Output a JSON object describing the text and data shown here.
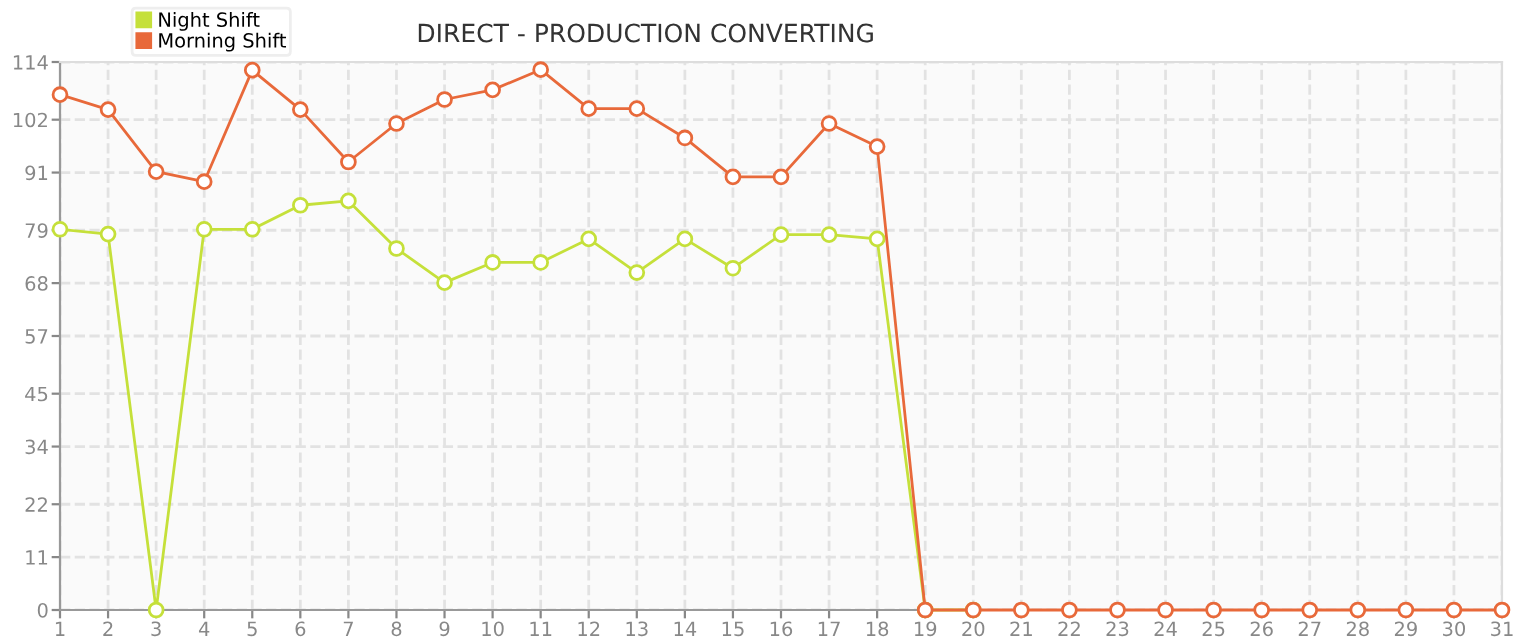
{
  "chart_data": {
    "type": "line",
    "title": "DIRECT - PRODUCTION CONVERTING",
    "x": [
      1,
      2,
      3,
      4,
      5,
      6,
      7,
      8,
      9,
      10,
      11,
      12,
      13,
      14,
      15,
      16,
      17,
      18,
      19,
      20,
      21,
      22,
      23,
      24,
      25,
      26,
      27,
      28,
      29,
      30,
      31
    ],
    "series": [
      {
        "name": "Night Shift",
        "color": "#c5e03a",
        "values": [
          79.2,
          78.2,
          0,
          79.2,
          79.2,
          84.2,
          85.1,
          75.2,
          68.1,
          72.3,
          72.3,
          77.2,
          70.2,
          77.2,
          71.1,
          78.1,
          78.1,
          77.2,
          0,
          0,
          null,
          null,
          null,
          null,
          null,
          null,
          null,
          null,
          null,
          null,
          null
        ]
      },
      {
        "name": "Morning Shift",
        "color": "#e8693a",
        "values": [
          107.2,
          104.1,
          91.2,
          89.1,
          112.3,
          104.1,
          93.2,
          101.2,
          106.2,
          108.2,
          112.4,
          104.3,
          104.3,
          98.2,
          90.1,
          90.1,
          101.2,
          96.4,
          0,
          0,
          0,
          0,
          0,
          0,
          0,
          0,
          0,
          0,
          0,
          0,
          0
        ]
      }
    ],
    "xlim": [
      1,
      31
    ],
    "xticks": [
      1,
      2,
      3,
      4,
      5,
      6,
      7,
      8,
      9,
      10,
      11,
      12,
      13,
      14,
      15,
      16,
      17,
      18,
      19,
      20,
      21,
      22,
      23,
      24,
      25,
      26,
      27,
      28,
      29,
      30,
      31
    ],
    "ylim": [
      0,
      114
    ],
    "yticks": [
      0,
      11,
      22,
      34,
      45,
      57,
      68,
      79,
      91,
      102,
      114
    ],
    "grid": true,
    "legend": "top left",
    "marker": "circle",
    "line_style": "solid"
  }
}
